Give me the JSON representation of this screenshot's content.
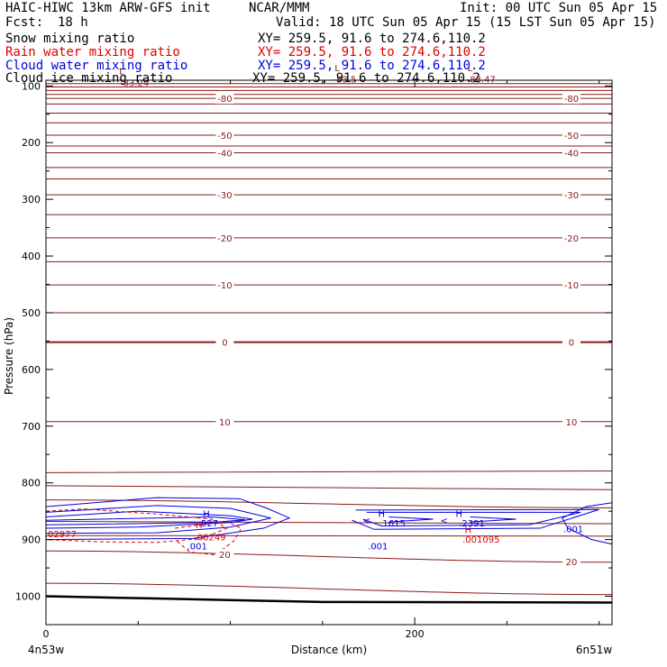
{
  "header": {
    "model": "HAIC-HIWC 13km ARW-GFS init",
    "org": "NCAR/MMM",
    "init": "Init: 00 UTC Sun 05 Apr 15",
    "fcst_label": "Fcst:",
    "fcst_value": "18 h",
    "valid": "Valid: 18 UTC Sun 05 Apr 15 (15 LST Sun 05 Apr 15)"
  },
  "fields": [
    {
      "name": "Snow mixing ratio",
      "xy": "XY= 259.5, 91.6 to 274.6,110.2",
      "color": "#000000"
    },
    {
      "name": "Rain water mixing ratio",
      "xy": "XY= 259.5, 91.6 to 274.6,110.2",
      "color": "#dd0000"
    },
    {
      "name": "Cloud water mixing ratio",
      "xy": "XY= 259.5, 91.6 to 274.6,110.2",
      "color": "#0000dd"
    },
    {
      "name": "Cloud ice mixing ratio",
      "xy": "XY= 259.5, 91.6 to 274.6,110.2",
      "color": "#000000"
    }
  ],
  "chart_data": {
    "type": "line",
    "xlabel": "Distance (km)",
    "ylabel": "Pressure (hPa)",
    "xlim": [
      0,
      307
    ],
    "ylim": [
      1050,
      90
    ],
    "x_ticks": [
      0,
      200
    ],
    "x_minor_ticks": [
      50,
      100,
      150,
      250,
      300
    ],
    "y_ticks": [
      100,
      200,
      300,
      400,
      500,
      600,
      700,
      800,
      900,
      1000
    ],
    "y_minor_step": 50,
    "x_endpoint_labels": {
      "left": "4n53w",
      "right": "6n51w"
    },
    "colors": {
      "temperature": "#8b1a1a",
      "rain": "#dd0000",
      "cloud_water": "#0000dd",
      "terrain": "#000000"
    },
    "temperature_contours": [
      {
        "p_left": 90,
        "p_right": 90
      },
      {
        "p_left": 96,
        "p_right": 96
      },
      {
        "p_left": 102,
        "p_right": 102
      },
      {
        "p_left": 108,
        "p_right": 108
      },
      {
        "p_left": 115,
        "p_right": 115
      },
      {
        "p_left": 122,
        "p_right": 122,
        "label": "-80"
      },
      {
        "p_left": 132,
        "p_right": 132
      },
      {
        "p_left": 148,
        "p_right": 148
      },
      {
        "p_left": 165,
        "p_right": 165
      },
      {
        "p_left": 187,
        "p_right": 187,
        "label": "-50"
      },
      {
        "p_left": 206,
        "p_right": 206
      },
      {
        "p_left": 218,
        "p_right": 218,
        "label": "-40"
      },
      {
        "p_left": 244,
        "p_right": 244
      },
      {
        "p_left": 264,
        "p_right": 264
      },
      {
        "p_left": 292,
        "p_right": 292,
        "label": "-30"
      },
      {
        "p_left": 327,
        "p_right": 327
      },
      {
        "p_left": 368,
        "p_right": 368,
        "label": "-20"
      },
      {
        "p_left": 410,
        "p_right": 410
      },
      {
        "p_left": 451,
        "p_right": 451,
        "label": "-10"
      },
      {
        "p_left": 500,
        "p_right": 500
      },
      {
        "p_left": 552,
        "p_right": 552,
        "label": "0"
      },
      {
        "p_left": 692,
        "p_right": 692,
        "label": "10"
      },
      {
        "p_left": 782,
        "p_right": 779
      },
      {
        "p_left": 805,
        "p_right": 812
      },
      {
        "p_left": 830,
        "p_right": 844
      },
      {
        "p_left": 868,
        "p_right": 872
      },
      {
        "p_left": 893,
        "p_right": 894
      },
      {
        "p_left": 920,
        "p_right": 940,
        "label": "20"
      },
      {
        "p_left": 977,
        "p_right": 997
      }
    ],
    "thick_contours": [
      552
    ],
    "surface_pressure": {
      "x": [
        0,
        60,
        150,
        307
      ],
      "p": [
        1000,
        1004,
        1010,
        1011
      ]
    },
    "cloud_water_contours": [
      {
        "x": [
          0,
          60,
          105,
          120,
          132,
          118,
          80,
          0
        ],
        "p": [
          842,
          826,
          828,
          845,
          862,
          880,
          898,
          900
        ]
      },
      {
        "x": [
          0,
          60,
          100,
          122,
          100,
          60,
          0
        ],
        "p": [
          852,
          840,
          845,
          862,
          878,
          888,
          889
        ]
      },
      {
        "x": [
          0,
          50,
          100,
          112,
          100,
          50,
          0
        ],
        "p": [
          860,
          850,
          858,
          864,
          870,
          878,
          880
        ]
      },
      {
        "x": [
          0,
          90,
          108,
          90,
          0
        ],
        "p": [
          866,
          860,
          865,
          870,
          874
        ]
      },
      {
        "x": [
          168,
          300,
          268,
          178,
          166
        ],
        "p": [
          848,
          847,
          880,
          882,
          866
        ]
      },
      {
        "x": [
          174,
          290,
          262,
          182,
          172
        ],
        "p": [
          852,
          852,
          874,
          876,
          864
        ]
      },
      {
        "x": [
          186,
          210,
          186
        ],
        "p": [
          860,
          864,
          869
        ]
      },
      {
        "x": [
          230,
          255,
          230
        ],
        "p": [
          860,
          864,
          869
        ]
      },
      {
        "x": [
          307,
          293,
          280,
          283,
          296,
          307
        ],
        "p": [
          835,
          842,
          862,
          880,
          900,
          908
        ]
      }
    ],
    "rain_contours": [
      {
        "x": [
          0,
          20,
          60,
          90,
          98,
          85,
          60,
          30,
          0
        ],
        "p": [
          850,
          846,
          855,
          864,
          880,
          898,
          905,
          904,
          900
        ],
        "dashed": true
      },
      {
        "x": [
          70,
          98,
          106,
          102,
          92,
          78,
          70
        ],
        "p": [
          880,
          868,
          880,
          902,
          927,
          922,
          900
        ],
        "dashed": true
      }
    ],
    "labels": [
      {
        "text": "L",
        "x": 41,
        "p": 80,
        "color": "temperature"
      },
      {
        "text": "-83.24",
        "x": 48,
        "p": 100,
        "color": "temperature"
      },
      {
        "text": "L",
        "x": 158,
        "p": 74,
        "color": "temperature"
      },
      {
        "text": "-83.5",
        "x": 162,
        "p": 94,
        "color": "temperature"
      },
      {
        "text": "L",
        "x": 230,
        "p": 74,
        "color": "temperature"
      },
      {
        "text": "-83.47",
        "x": 236,
        "p": 94,
        "color": "temperature"
      },
      {
        "text": "H",
        "x": 87,
        "p": 860,
        "color": "cloud_water"
      },
      {
        "text": ".527",
        "x": 88,
        "p": 877,
        "color": "cloud_water"
      },
      {
        "text": ".001",
        "x": 82,
        "p": 917,
        "color": "cloud_water"
      },
      {
        "text": "H",
        "x": 83,
        "p": 880,
        "color": "rain"
      },
      {
        "text": ".00249",
        "x": 89,
        "p": 901,
        "color": "rain"
      },
      {
        "text": ".02977",
        "x": 8,
        "p": 896,
        "color": "rain"
      },
      {
        "text": "H",
        "x": 182,
        "p": 860,
        "color": "cloud_water"
      },
      {
        "text": ".1615",
        "x": 188,
        "p": 877,
        "color": "cloud_water"
      },
      {
        "text": "H",
        "x": 224,
        "p": 860,
        "color": "cloud_water"
      },
      {
        "text": ".2391",
        "x": 231,
        "p": 877,
        "color": "cloud_water"
      },
      {
        "text": ".001",
        "x": 180,
        "p": 917,
        "color": "cloud_water"
      },
      {
        "text": "H",
        "x": 229,
        "p": 889,
        "color": "rain"
      },
      {
        "text": ".001095",
        "x": 236,
        "p": 905,
        "color": "rain"
      },
      {
        "text": ".001",
        "x": 286,
        "p": 887,
        "color": "cloud_water"
      },
      {
        "text": "<",
        "x": 174,
        "p": 872,
        "color": "cloud_water"
      },
      {
        "text": "<",
        "x": 216,
        "p": 872,
        "color": "cloud_water"
      }
    ]
  }
}
